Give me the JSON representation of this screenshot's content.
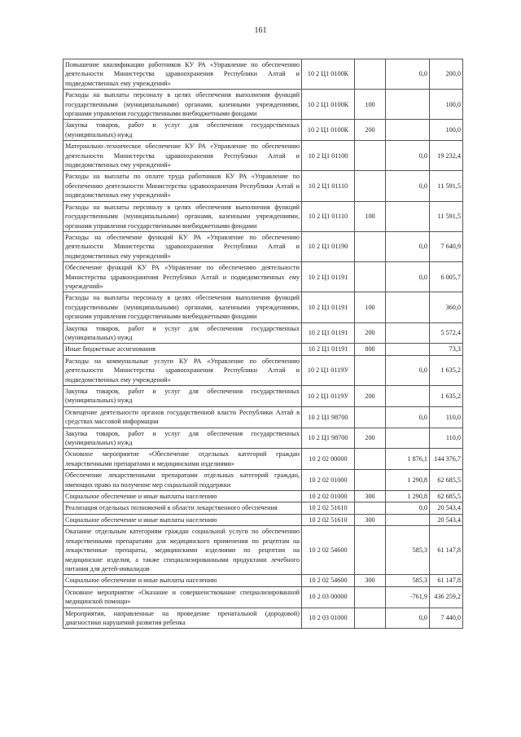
{
  "page_number": "161",
  "rows": [
    {
      "desc": "Повышение квалификации работников КУ РА «Управление по обеспечению деятельности Министерства здравоохранения Республики Алтай и подведомственных ему учреждений»",
      "code": "10 2 Ц1 0100К",
      "group": "",
      "v1": "0,0",
      "v2": "200,0"
    },
    {
      "desc": "Расходы на выплаты персоналу в целях обеспечения выполнения функций государственными (муниципальными) органами, казенными учреждениями, органами управления государственными внебюджетными фондами",
      "code": "10 2 Ц1 0100К",
      "group": "100",
      "v1": "",
      "v2": "100,0"
    },
    {
      "desc": "Закупка товаров, работ и услуг для обеспечения государственных (муниципальных) нужд",
      "code": "10 2 Ц1 0100К",
      "group": "200",
      "v1": "",
      "v2": "100,0"
    },
    {
      "desc": "Материально–техническое обеспечение КУ РА «Управление по обеспечению деятельности Министерства здравоохранения Республики Алтай и подведомственных ему учреждений»",
      "code": "10 2 Ц1 01100",
      "group": "",
      "v1": "0,0",
      "v2": "19 232,4"
    },
    {
      "desc": "Расходы на выплаты по оплате труда работников  КУ РА «Управление по обеспечению деятельности Министерства здравоохранения Республики Алтай и подведомственных ему учреждений»",
      "code": "10 2 Ц1 01110",
      "group": "",
      "v1": "0,0",
      "v2": "11 591,5"
    },
    {
      "desc": "Расходы на выплаты персоналу в целях обеспечения выполнения функций государственными (муниципальными) органами, казенными учреждениями, органами управления государственными внебюджетными фондами",
      "code": "10 2 Ц1 01110",
      "group": "100",
      "v1": "",
      "v2": "11 591,5"
    },
    {
      "desc": "Расходы на обеспечение функций КУ РА «Управление по обеспечению деятельности Министерства здравоохранения Республики Алтай и подведомственных ему учреждений»",
      "code": "10 2 Ц1 01190",
      "group": "",
      "v1": "0,0",
      "v2": "7 640,9"
    },
    {
      "desc": "Обеспечение функций КУ РА «Управление по обеспечению деятельности Министерства здравоохранения Республики Алтай и подведомственных ему учреждений»",
      "code": "10 2 Ц1 01191",
      "group": "",
      "v1": "0,0",
      "v2": "6 005,7"
    },
    {
      "desc": "Расходы на выплаты персоналу в целях обеспечения выполнения функций государственными (муниципальными) органами, казенными учреждениями, органами управления государственными внебюджетными фондами",
      "code": "10 2 Ц1 01191",
      "group": "100",
      "v1": "",
      "v2": "360,0"
    },
    {
      "desc": "Закупка товаров, работ и услуг для обеспечения государственных (муниципальных) нужд",
      "code": "10 2 Ц1 01191",
      "group": "200",
      "v1": "",
      "v2": "5 572,4"
    },
    {
      "desc": "Иные бюджетные ассигнования",
      "code": "10 2 Ц1 01191",
      "group": "800",
      "v1": "",
      "v2": "73,3"
    },
    {
      "desc": "Расходы на коммунальные услуги КУ РА «Управление по обеспечению деятельности Министерства здравоохранения Республики Алтай и подведомственных ему учреждений»",
      "code": "10 2 Ц1 0119У",
      "group": "",
      "v1": "0,0",
      "v2": "1 635,2"
    },
    {
      "desc": "Закупка товаров, работ и услуг для обеспечения государственных (муниципальных) нужд",
      "code": "10 2 Ц1 0119У",
      "group": "200",
      "v1": "",
      "v2": "1 635,2"
    },
    {
      "desc": "Освещение деятельности органов государственной власти Республики Алтай  в средствах массовой информации",
      "code": "10 2 Ц1 98700",
      "group": "",
      "v1": "0,0",
      "v2": "110,0"
    },
    {
      "desc": "Закупка товаров, работ и услуг для обеспечения государственных (муниципальных) нужд",
      "code": "10 2 Ц1 98700",
      "group": "200",
      "v1": "",
      "v2": "110,0"
    },
    {
      "desc": "Основное мероприятие «Обеспечение отдельных категорий граждан лекарственными препаратами и медицинскими изделиями»",
      "code": "10 2 02 00000",
      "group": "",
      "v1": "1 876,1",
      "v2": "144 376,7"
    },
    {
      "desc": "Обеспечение лекарственными препаратами отдельных категорий граждан, имеющих право на получение мер социальной поддержки",
      "code": "10 2 02 01000",
      "group": "",
      "v1": "1 290,8",
      "v2": "62 685,5"
    },
    {
      "desc": "Социальное обеспечение и иные выплаты населению",
      "code": "10 2 02 01000",
      "group": "300",
      "v1": "1 290,8",
      "v2": "62 685,5"
    },
    {
      "desc": "Реализация отдельных полномочий в области лекарственного обеспечения",
      "code": "10 2 02 51610",
      "group": "",
      "v1": "0,0",
      "v2": "20 543,4"
    },
    {
      "desc": "Социальное обеспечение и иные выплаты населению",
      "code": "10 2 02 51610",
      "group": "300",
      "v1": "",
      "v2": "20 543,4"
    },
    {
      "desc": "Оказание отдельным категориям граждан социальной услуги по обеспечению лекарственными препаратами для медицинского применения по рецептам на лекарственные препараты, медицинскими изделиями по рецептам на медицинские изделия, а также специализированными продуктами лечебного питания для детей-инвалидов",
      "code": "10 2 02 54600",
      "group": "",
      "v1": "585,3",
      "v2": "61 147,8"
    },
    {
      "desc": "Социальное обеспечение и иные выплаты населению",
      "code": "10 2 02 54600",
      "group": "300",
      "v1": "585,3",
      "v2": "61 147,8"
    },
    {
      "desc": "Основное мероприятие «Оказание и совершенствование специализированной медицинской помощи»",
      "code": "10 2 03 00000",
      "group": "",
      "v1": "-761,9",
      "v2": "436 259,2"
    },
    {
      "desc": "Мероприятия, направленные на проведение пренатальной (дородовой) диагностики нарушений развития ребенка",
      "code": "10 2 03 01000",
      "group": "",
      "v1": "0,0",
      "v2": "7 440,0"
    }
  ]
}
